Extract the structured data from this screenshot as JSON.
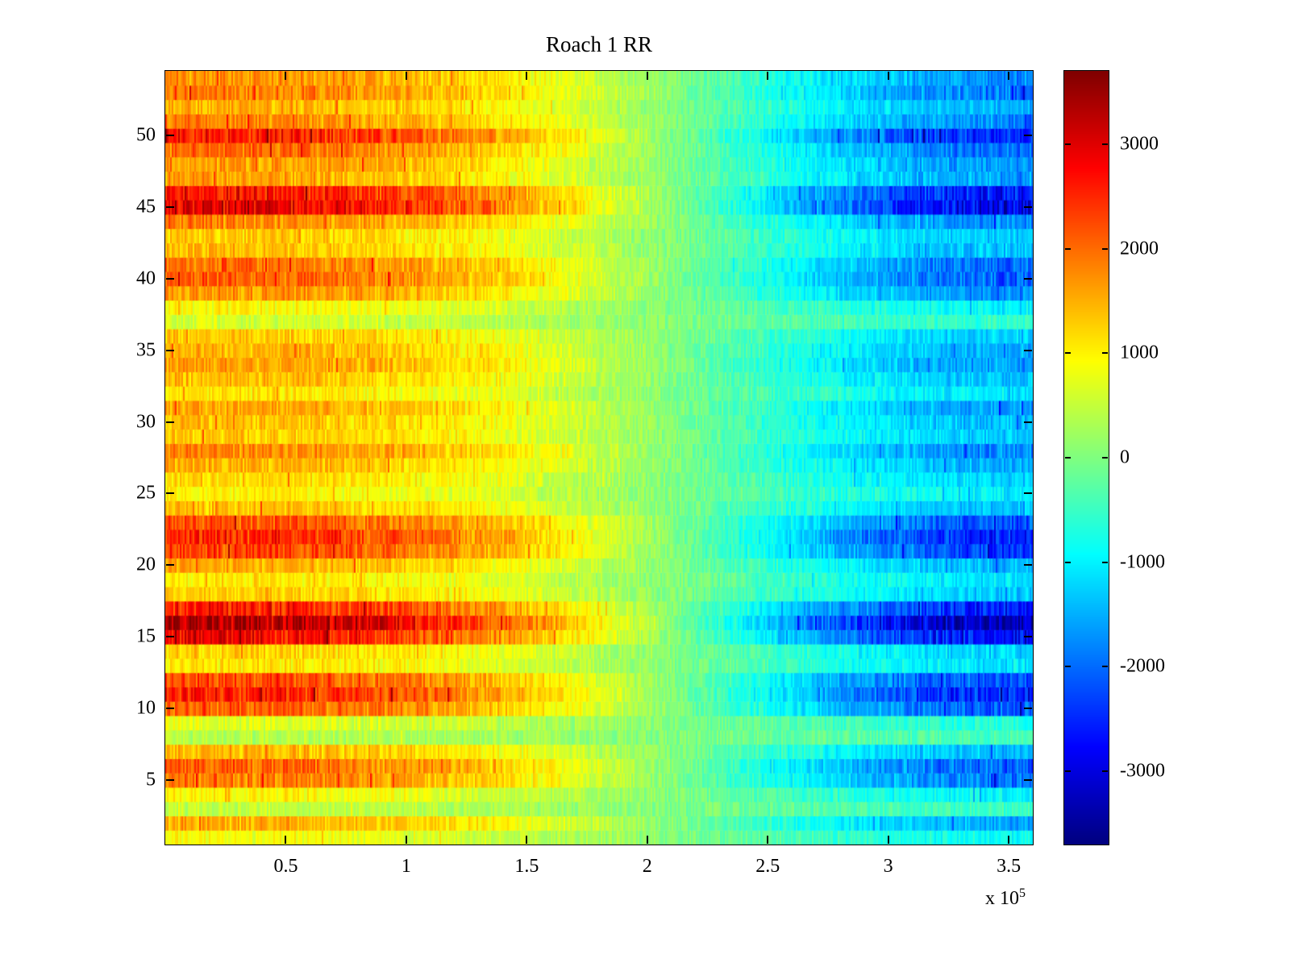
{
  "title": "Roach 1 RR",
  "exponent_label": {
    "base": "x 10",
    "exp": "5"
  },
  "colors": {
    "background": "#ffffff",
    "axis": "#000000"
  },
  "chart_data": {
    "type": "heatmap",
    "title": "Roach 1 RR",
    "colormap": "jet",
    "clim": [
      -3700,
      3700
    ],
    "x_axis": {
      "range": [
        0,
        360000
      ],
      "tick_values": [
        50000,
        100000,
        150000,
        200000,
        250000,
        300000,
        350000
      ],
      "tick_labels": [
        "0.5",
        "1",
        "1.5",
        "2",
        "2.5",
        "3",
        "3.5"
      ],
      "multiplier": "x 10^5"
    },
    "y_axis": {
      "range": [
        0.5,
        54.5
      ],
      "n_rows": 54,
      "tick_values": [
        5,
        10,
        15,
        20,
        25,
        30,
        35,
        40,
        45,
        50
      ],
      "tick_labels": [
        "5",
        "10",
        "15",
        "20",
        "25",
        "30",
        "35",
        "40",
        "45",
        "50"
      ]
    },
    "colorbar": {
      "tick_values": [
        3000,
        2000,
        1000,
        0,
        -1000,
        -2000,
        -3000
      ],
      "tick_labels": [
        "3000",
        "2000",
        "1000",
        "0",
        "-1000",
        "-2000",
        "-3000"
      ]
    },
    "value_model": "value(row,x) = amplitude[row] * cos(pi * (x/xmax)^1.3) + noise",
    "noise_amplitude": 500,
    "row_amplitudes_bottom_to_top": [
      850,
      1500,
      500,
      950,
      1900,
      2050,
      1450,
      400,
      700,
      2100,
      2600,
      2250,
      1100,
      1250,
      2800,
      3400,
      2600,
      1300,
      1100,
      1500,
      2300,
      2550,
      2200,
      1400,
      1000,
      1200,
      1500,
      1800,
      1300,
      1400,
      1600,
      1100,
      1400,
      1650,
      1500,
      1300,
      600,
      950,
      1700,
      2100,
      2000,
      1400,
      1300,
      1800,
      2950,
      2700,
      1600,
      1700,
      2000,
      2600,
      1800,
      1500,
      1900,
      1700
    ]
  }
}
